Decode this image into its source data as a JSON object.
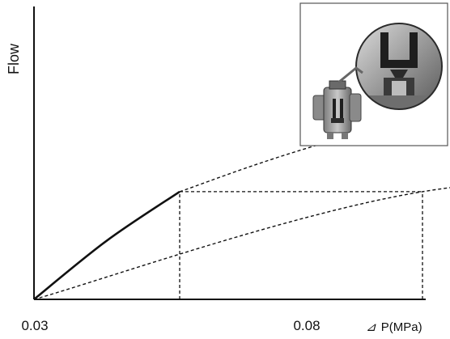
{
  "chart_data": {
    "type": "line",
    "ylabel": "Flow",
    "xlabel_symbol": "⊿",
    "xlabel_text": "P(MPa)",
    "x_ticks": [
      {
        "value": 0.03,
        "label": "0.03"
      },
      {
        "value": 0.08,
        "label": "0.08"
      }
    ],
    "series": [
      {
        "style": "solid",
        "points": [
          [
            0.0,
            0.0
          ],
          [
            0.015,
            0.3
          ],
          [
            0.03,
            0.55
          ]
        ]
      },
      {
        "style": "dashed",
        "points": [
          [
            0.03,
            0.55
          ],
          [
            0.06,
            0.8
          ],
          [
            0.12,
            1.2
          ],
          [
            0.16,
            1.4
          ]
        ]
      },
      {
        "style": "dashed",
        "points": [
          [
            0.0,
            0.0
          ],
          [
            0.08,
            0.55
          ],
          [
            0.16,
            0.65
          ]
        ]
      }
    ],
    "reference_lines": [
      {
        "from": [
          0.03,
          0.55
        ],
        "to": [
          0.08,
          0.55
        ]
      },
      {
        "from": [
          0.03,
          0.0
        ],
        "to": [
          0.03,
          0.55
        ]
      },
      {
        "from": [
          0.08,
          0.0
        ],
        "to": [
          0.08,
          0.55
        ]
      }
    ],
    "grid": false,
    "legend": "none",
    "inset": {
      "position": "top-right",
      "content": "valve-photo"
    }
  }
}
